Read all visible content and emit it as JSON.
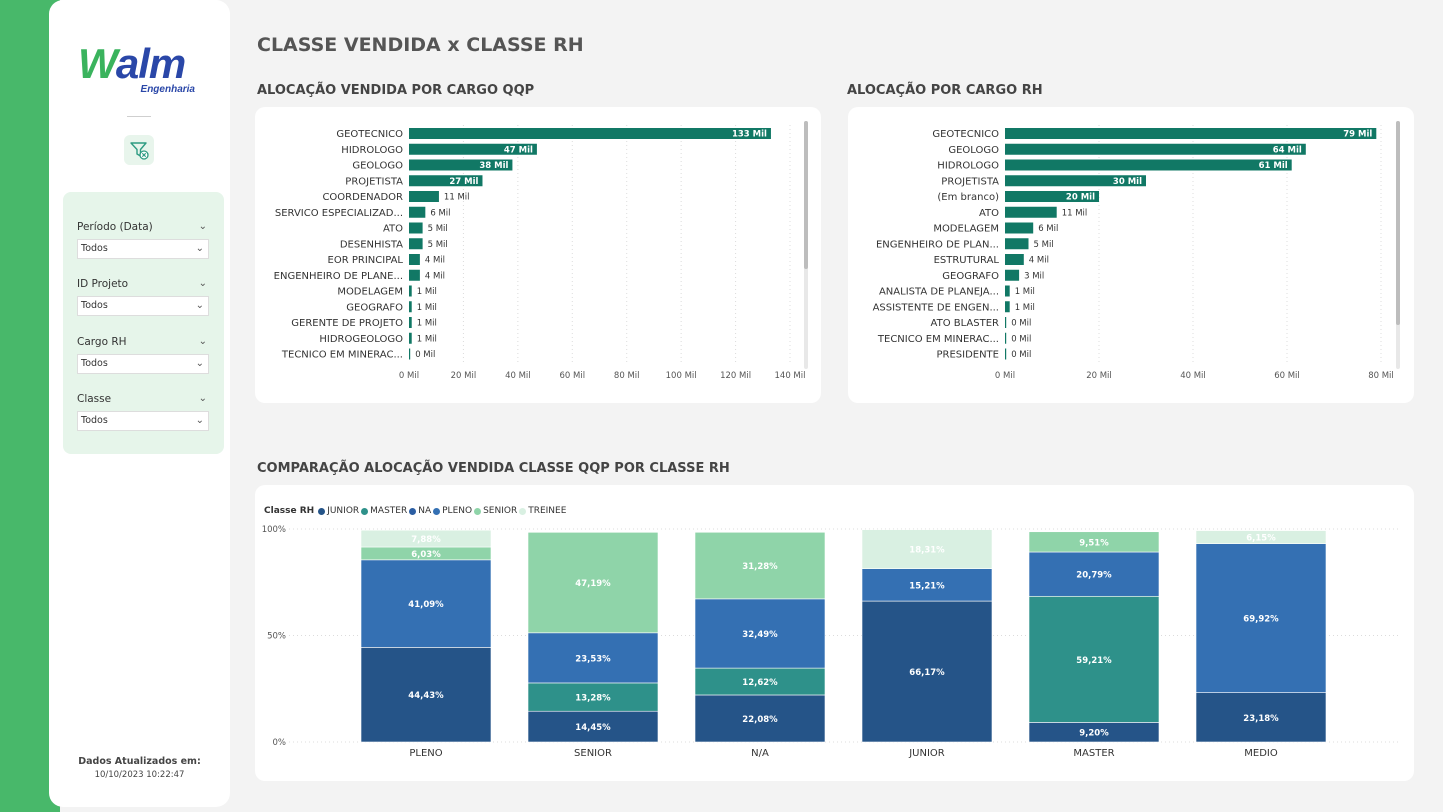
{
  "page": {
    "title": "CLASSE VENDIDA x CLASSE RH"
  },
  "sidebar": {
    "logo_w": "W",
    "logo_rest": "alm",
    "logo_sub": "Engenharia",
    "filters": [
      {
        "label": "Período (Data)",
        "value": "Todos"
      },
      {
        "label": "ID Projeto",
        "value": "Todos"
      },
      {
        "label": "Cargo RH",
        "value": "Todos"
      },
      {
        "label": "Classe",
        "value": "Todos"
      }
    ],
    "updated_label": "Dados Atualizados em:",
    "updated_value": "10/10/2023 10:22:47"
  },
  "sections": {
    "left_title": "ALOCAÇÃO VENDIDA POR CARGO QQP",
    "right_title": "ALOCAÇÃO POR CARGO RH",
    "bottom_title": "COMPARAÇÃO ALOCAÇÃO VENDIDA CLASSE QQP POR CLASSE RH"
  },
  "colors": {
    "bar": "#117865",
    "junior": "#255488",
    "master": "#2e918a",
    "na": "#2b5ea3",
    "pleno": "#3470b3",
    "senior": "#8fd4a9",
    "treinee": "#d9f0e2"
  },
  "chart_data": [
    {
      "type": "bar",
      "orientation": "horizontal",
      "categories": [
        "GEOTECNICO",
        "HIDROLOGO",
        "GEOLOGO",
        "PROJETISTA",
        "COORDENADOR",
        "SERVICO ESPECIALIZAD...",
        "ATO",
        "DESENHISTA",
        "EOR PRINCIPAL",
        "ENGENHEIRO DE PLANE...",
        "MODELAGEM",
        "GEOGRAFO",
        "GERENTE DE PROJETO",
        "HIDROGEOLOGO",
        "TECNICO EM MINERAC..."
      ],
      "values": [
        133,
        47,
        38,
        27,
        11,
        6,
        5,
        5,
        4,
        4,
        1,
        1,
        1,
        1,
        0
      ],
      "data_labels": [
        "133 Mil",
        "47 Mil",
        "38 Mil",
        "27 Mil",
        "11 Mil",
        "6 Mil",
        "5 Mil",
        "5 Mil",
        "4 Mil",
        "4 Mil",
        "1 Mil",
        "1 Mil",
        "1 Mil",
        "1 Mil",
        "0 Mil"
      ],
      "xlim": [
        0,
        140
      ],
      "ticks": [
        "0 Mil",
        "20 Mil",
        "40 Mil",
        "60 Mil",
        "80 Mil",
        "100 Mil",
        "120 Mil",
        "140 Mil"
      ],
      "grid": true
    },
    {
      "type": "bar",
      "orientation": "horizontal",
      "categories": [
        "GEOTECNICO",
        "GEOLOGO",
        "HIDROLOGO",
        "PROJETISTA",
        "(Em branco)",
        "ATO",
        "MODELAGEM",
        "ENGENHEIRO DE PLAN...",
        "ESTRUTURAL",
        "GEOGRAFO",
        "ANALISTA DE PLANEJA...",
        "ASSISTENTE DE ENGEN...",
        "ATO BLASTER",
        "TECNICO EM MINERAC...",
        "PRESIDENTE"
      ],
      "values": [
        79,
        64,
        61,
        30,
        20,
        11,
        6,
        5,
        4,
        3,
        1,
        1,
        0,
        0,
        0
      ],
      "data_labels": [
        "79 Mil",
        "64 Mil",
        "61 Mil",
        "30 Mil",
        "20 Mil",
        "11 Mil",
        "6 Mil",
        "5 Mil",
        "4 Mil",
        "3 Mil",
        "1 Mil",
        "1 Mil",
        "0 Mil",
        "0 Mil",
        "0 Mil"
      ],
      "xlim": [
        0,
        80
      ],
      "ticks": [
        "0 Mil",
        "20 Mil",
        "40 Mil",
        "60 Mil",
        "80 Mil"
      ],
      "grid": true
    },
    {
      "type": "bar",
      "stacked": "percent",
      "legend_title": "Classe RH",
      "legend_position": "top-left",
      "categories": [
        "PLENO",
        "SENIOR",
        "N/A",
        "JUNIOR",
        "MASTER",
        "MEDIO"
      ],
      "y_ticks": [
        "100%",
        "50%",
        "0%"
      ],
      "ylim": [
        0,
        100
      ],
      "series": [
        {
          "name": "JUNIOR",
          "color": "#255488",
          "values": [
            44.43,
            0,
            0,
            66.17,
            0,
            0
          ],
          "labels": [
            "44,43%",
            "",
            "",
            "66,17%",
            "",
            ""
          ]
        },
        {
          "name": "MASTER",
          "color": "#2e918a",
          "values": [
            0,
            0,
            0,
            0,
            59.21,
            0
          ],
          "labels": [
            "",
            "",
            "",
            "",
            "59,21%",
            ""
          ]
        },
        {
          "name": "NA",
          "color": "#2b5ea3",
          "values": [
            0,
            0,
            0,
            0,
            0,
            0
          ],
          "labels": [
            "",
            "",
            "",
            "",
            "",
            ""
          ]
        },
        {
          "name": "PLENO",
          "color": "#3470b3",
          "values": [
            41.09,
            23.53,
            32.49,
            15.21,
            20.79,
            69.92
          ],
          "labels": [
            "41,09%",
            "23,53%",
            "32,49%",
            "15,21%",
            "20,79%",
            "69,92%"
          ]
        },
        {
          "name": "SENIOR",
          "color": "#8fd4a9",
          "values": [
            6.03,
            47.19,
            31.28,
            0,
            9.51,
            0
          ],
          "labels": [
            "6,03%",
            "47,19%",
            "31,28%",
            "",
            "9,51%",
            ""
          ]
        },
        {
          "name": "TREINEE",
          "color": "#d9f0e2",
          "values": [
            7.88,
            0,
            0,
            18.31,
            0,
            6.15
          ],
          "labels": [
            "7,88%",
            "",
            "",
            "18,31%",
            "",
            "6,15%"
          ]
        }
      ],
      "extra_segments": [
        {
          "category": "SENIOR",
          "bottom_series_labels": [
            "14,45%",
            "13,28%"
          ],
          "values": [
            14.45,
            13.28
          ],
          "colors": [
            "#255488",
            "#2e918a"
          ]
        },
        {
          "category": "N/A",
          "bottom_series_labels": [
            "22,08%",
            "12,62%"
          ],
          "values": [
            22.08,
            12.62
          ],
          "colors": [
            "#255488",
            "#2e918a"
          ]
        },
        {
          "category": "MASTER",
          "bottom_series_labels": [
            "9,20%"
          ],
          "values": [
            9.2
          ],
          "colors": [
            "#255488"
          ]
        },
        {
          "category": "MEDIO",
          "bottom_series_labels": [
            "23,18%"
          ],
          "values": [
            23.18
          ],
          "colors": [
            "#255488"
          ]
        }
      ]
    }
  ]
}
